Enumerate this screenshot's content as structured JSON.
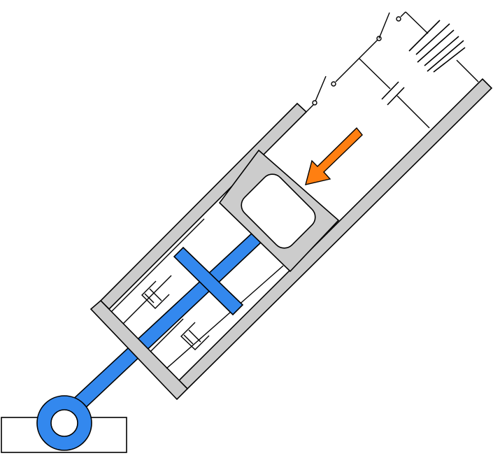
{
  "colors": {
    "housing": "#cccccc",
    "rod": "#3388ee",
    "arrow": "#ff7f11",
    "outline": "#000000",
    "background": "#ffffff"
  },
  "parts": {
    "housing": "gas-spring-cylinder-housing",
    "piston": "sealed-piston-with-chamber",
    "rod": "piston-rod",
    "damper": "dashpot-elements",
    "mount": "pivot-eye-mount",
    "circuit": "battery-switch-capacitor-circuit",
    "force_arrow": "force-direction-arrow"
  }
}
